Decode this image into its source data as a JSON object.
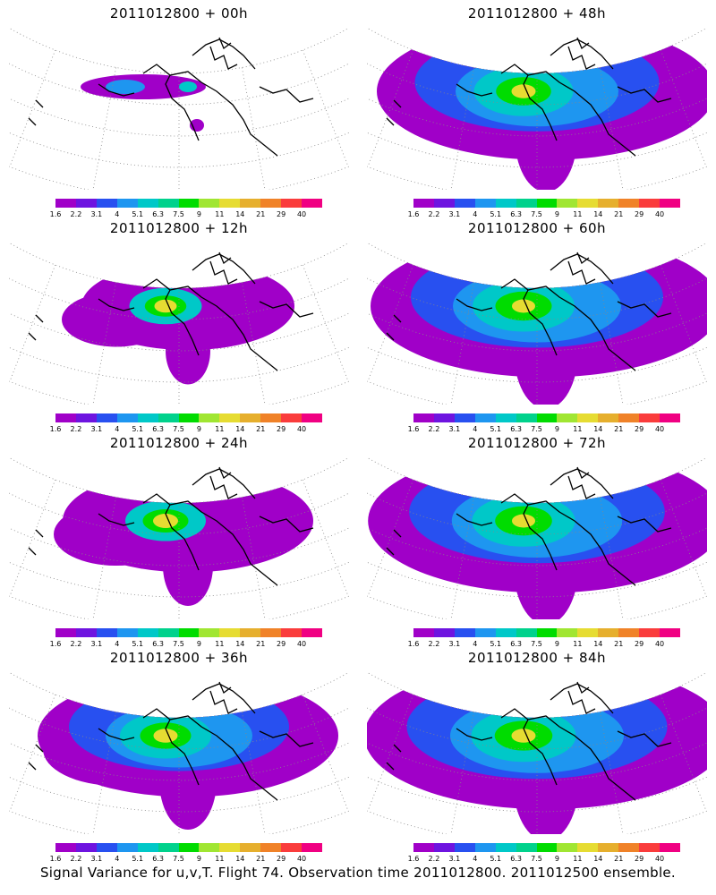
{
  "panels": [
    {
      "title": "2011012800 + 00h",
      "spread": 0.0,
      "core": 0.25
    },
    {
      "title": "2011012800 + 48h",
      "spread": 0.85,
      "core": 0.55
    },
    {
      "title": "2011012800 + 12h",
      "spread": 0.35,
      "core": 0.45
    },
    {
      "title": "2011012800 + 60h",
      "spread": 0.9,
      "core": 0.5
    },
    {
      "title": "2011012800 + 24h",
      "spread": 0.5,
      "core": 0.6
    },
    {
      "title": "2011012800 + 72h",
      "spread": 0.92,
      "core": 0.5
    },
    {
      "title": "2011012800 + 36h",
      "spread": 0.7,
      "core": 0.55
    },
    {
      "title": "2011012800 + 84h",
      "spread": 0.95,
      "core": 0.55
    }
  ],
  "colorbar": {
    "colors": [
      "#a000c8",
      "#6e14e0",
      "#2850f0",
      "#1e96f0",
      "#00c8c8",
      "#00d28c",
      "#00dc00",
      "#a0e632",
      "#e6dc32",
      "#e6af2d",
      "#f08228",
      "#fa3c3c",
      "#f00082"
    ],
    "labels": [
      "1.6",
      "2.2",
      "3.1",
      "4",
      "5.1",
      "6.3",
      "7.5",
      "9",
      "11",
      "14",
      "21",
      "29",
      "40"
    ]
  },
  "footer": "Signal Variance for u,v,T. Flight 74. Observation time 2011012800. 2011012500 ensemble."
}
